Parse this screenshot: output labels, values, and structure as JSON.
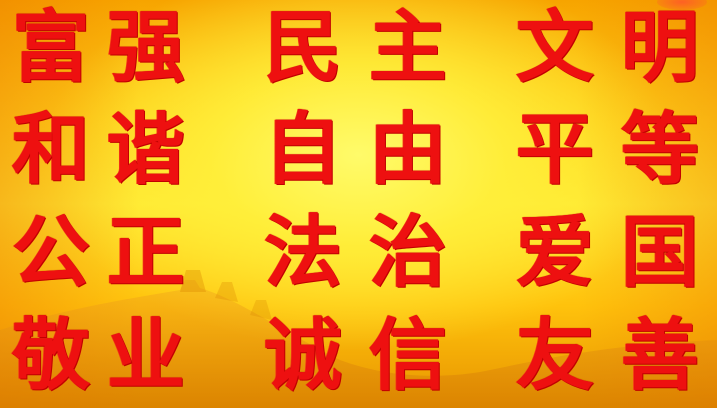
{
  "rows": [
    [
      "富",
      "强",
      "民",
      "主",
      "文",
      "明"
    ],
    [
      "和",
      "谐",
      "自",
      "由",
      "平",
      "等"
    ],
    [
      "公",
      "正",
      "法",
      "治",
      "爱",
      "国"
    ],
    [
      "敬",
      "业",
      "诚",
      "信",
      "友",
      "善"
    ]
  ],
  "colors": {
    "text": "#ee1010",
    "background": "#ffd21a"
  }
}
